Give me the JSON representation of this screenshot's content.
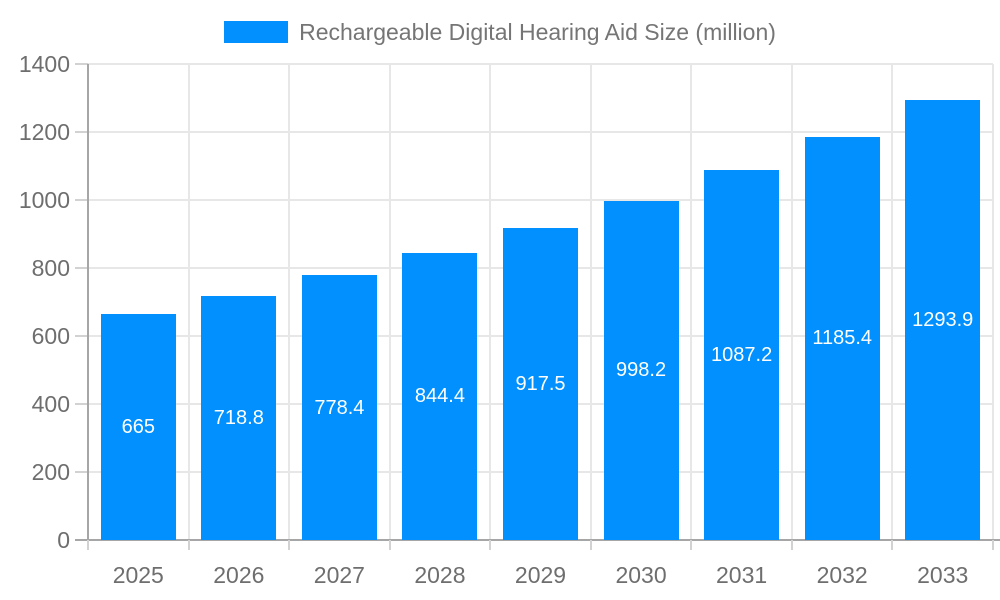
{
  "chart_data": {
    "type": "bar",
    "title": "Rechargeable Digital Hearing Aid Size (million)",
    "categories": [
      "2025",
      "2026",
      "2027",
      "2028",
      "2029",
      "2030",
      "2031",
      "2032",
      "2033"
    ],
    "values": [
      665,
      718.8,
      778.4,
      844.4,
      917.5,
      998.2,
      1087.2,
      1185.4,
      1293.9
    ],
    "value_labels": [
      "665",
      "718.8",
      "778.4",
      "844.4",
      "917.5",
      "998.2",
      "1087.2",
      "1185.4",
      "1293.9"
    ],
    "xlabel": "",
    "ylabel": "",
    "ylim": [
      0,
      1400
    ],
    "ytick_step": 200,
    "ytick_labels": [
      "0",
      "200",
      "400",
      "600",
      "800",
      "1000",
      "1200",
      "1400"
    ],
    "grid": true,
    "legend_position": "top",
    "colors": {
      "bar": "#0190fe",
      "grid": "#e7e7e7",
      "axis": "#a6a6a6",
      "tick": "#d2d2d2",
      "axis_text": "#6e6e6e",
      "legend_text": "#757575",
      "value_text": "#ffffff",
      "background": "#ffffff"
    }
  }
}
